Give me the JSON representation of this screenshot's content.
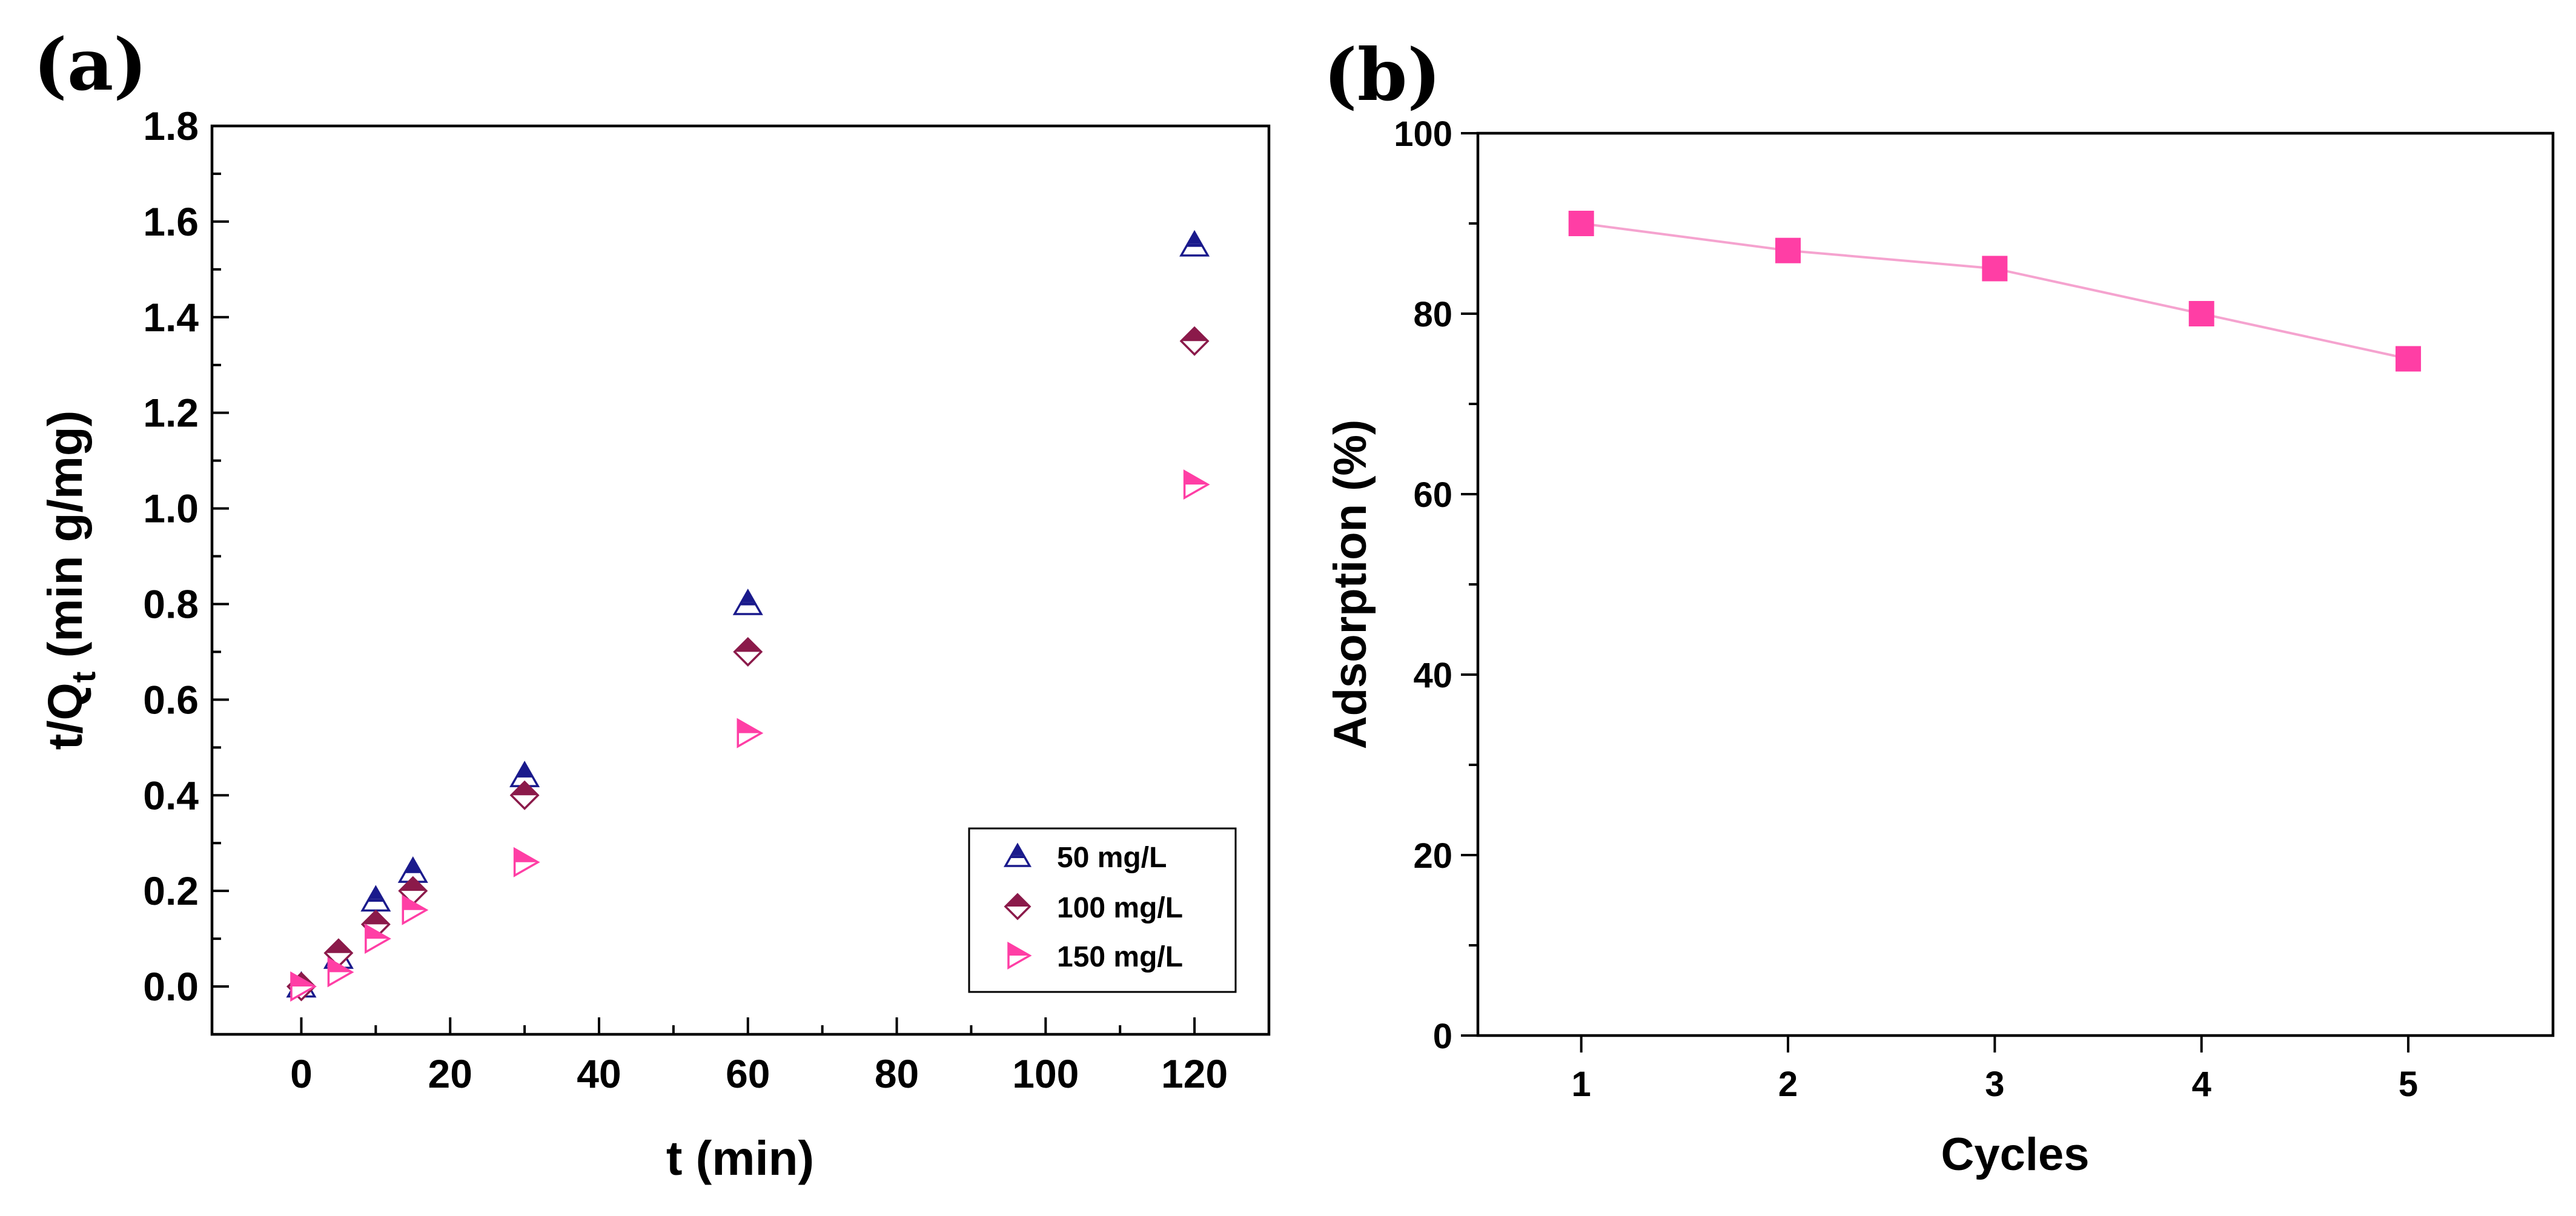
{
  "chart_data": [
    {
      "panel_label": "(a)",
      "type": "scatter",
      "xlabel": "t (min)",
      "ylabel": {
        "main": "t/Q",
        "sub": "t",
        "unit": " (min g/mg)"
      },
      "xlim": [
        -12,
        130
      ],
      "ylim": [
        -0.1,
        1.8
      ],
      "x_ticks": [
        "0",
        "20",
        "40",
        "60",
        "80",
        "100",
        "120"
      ],
      "y_ticks": [
        "0.0",
        "0.2",
        "0.4",
        "0.6",
        "0.8",
        "1.0",
        "1.2",
        "1.4",
        "1.6",
        "1.8"
      ],
      "legend_position": "bottom-right",
      "series": [
        {
          "name": "50 mg/L",
          "marker": "triangle-up",
          "color": "#1a1a8c",
          "x": [
            0,
            5,
            10,
            15,
            30,
            60,
            120
          ],
          "y": [
            0.0,
            0.06,
            0.18,
            0.24,
            0.44,
            0.8,
            1.55
          ]
        },
        {
          "name": "100 mg/L",
          "marker": "diamond",
          "color": "#8b1a4a",
          "x": [
            0,
            5,
            10,
            15,
            30,
            60,
            120
          ],
          "y": [
            0.0,
            0.07,
            0.13,
            0.2,
            0.4,
            0.7,
            1.35
          ]
        },
        {
          "name": "150 mg/L",
          "marker": "triangle-right",
          "color": "#ff3ea5",
          "x": [
            0,
            5,
            10,
            15,
            30,
            60,
            120
          ],
          "y": [
            0.0,
            0.03,
            0.1,
            0.16,
            0.26,
            0.53,
            1.05
          ]
        }
      ]
    },
    {
      "panel_label": "(b)",
      "type": "line",
      "xlabel": "Cycles",
      "ylabel": "Adsorption (%)",
      "xlim": [
        0.5,
        5.7
      ],
      "ylim": [
        0,
        100
      ],
      "x_ticks": [
        "1",
        "2",
        "3",
        "4",
        "5"
      ],
      "y_ticks": [
        "0",
        "20",
        "40",
        "60",
        "80",
        "100"
      ],
      "series": [
        {
          "name": "Adsorption",
          "marker": "square",
          "color": "#ff3ea5",
          "line_color": "#f5a3cf",
          "x": [
            1,
            2,
            3,
            4,
            5
          ],
          "y": [
            90,
            87,
            85,
            80,
            75
          ]
        }
      ]
    }
  ]
}
